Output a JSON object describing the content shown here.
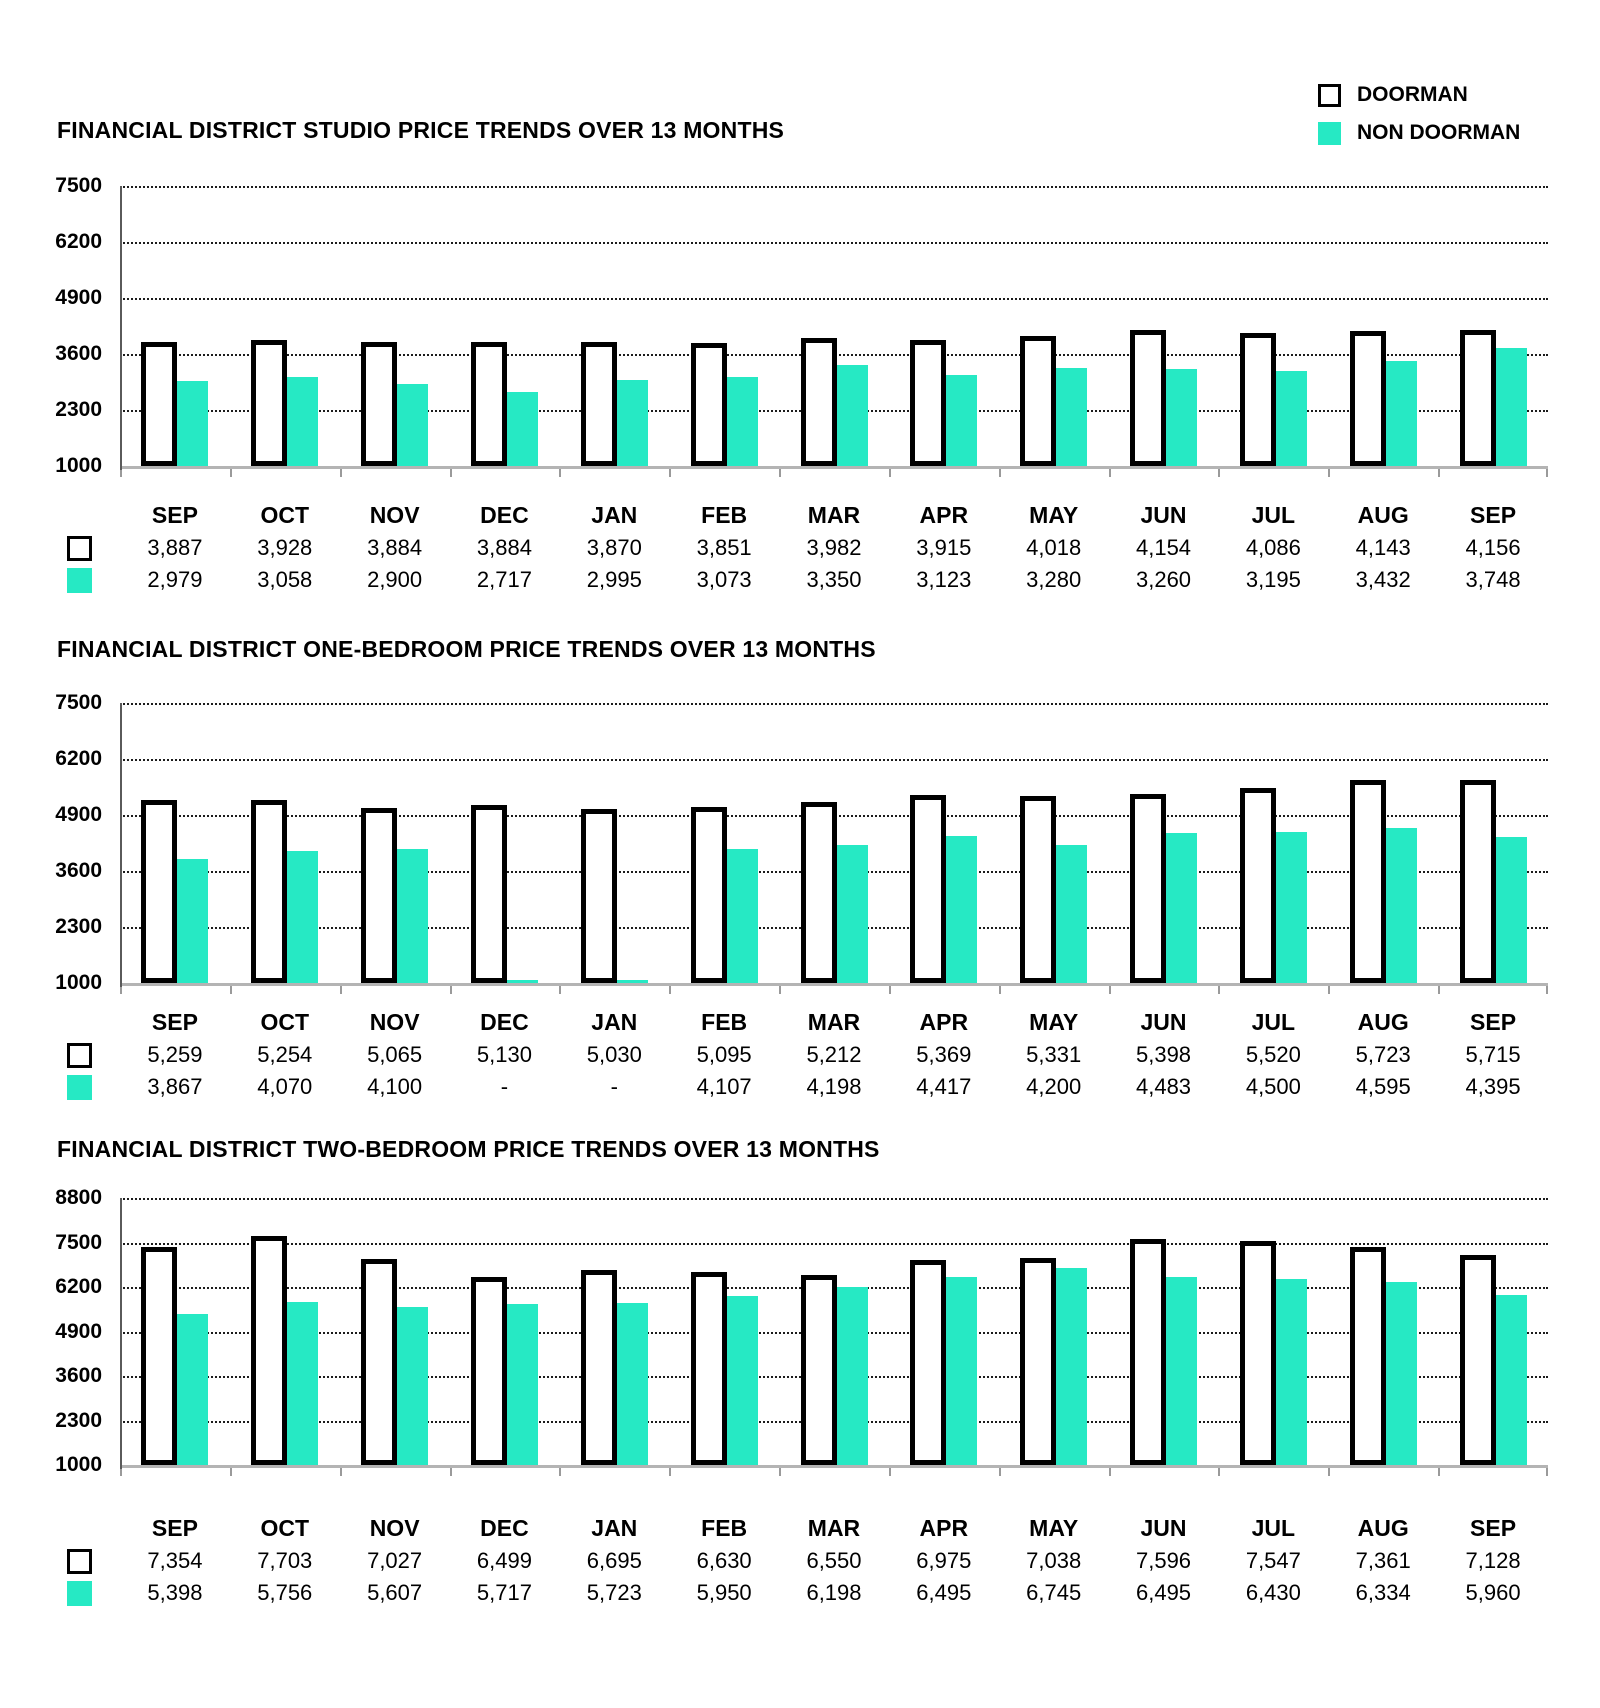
{
  "page": {
    "background": "#ffffff"
  },
  "colors": {
    "doorman_fill": "#ffffff",
    "doorman_border": "#000000",
    "non_doorman_fill": "#26E9C4",
    "gridline": "#1c1c1c",
    "axis_gray": "#b4b4b4"
  },
  "legend": {
    "position": "top-right",
    "items": [
      {
        "label": "DOORMAN",
        "swatch": "outline",
        "color": "#ffffff",
        "border": "#000000"
      },
      {
        "label": "NON DOORMAN",
        "swatch": "fill",
        "color": "#26E9C4"
      }
    ]
  },
  "chart_data": [
    {
      "type": "bar",
      "title": "FINANCIAL DISTRICT STUDIO PRICE TRENDS OVER 13 MONTHS",
      "categories": [
        "SEP",
        "OCT",
        "NOV",
        "DEC",
        "JAN",
        "FEB",
        "MAR",
        "APR",
        "MAY",
        "JUN",
        "JUL",
        "AUG",
        "SEP"
      ],
      "series": [
        {
          "name": "DOORMAN",
          "values": [
            3887,
            3928,
            3884,
            3884,
            3870,
            3851,
            3982,
            3915,
            4018,
            4154,
            4086,
            4143,
            4156
          ]
        },
        {
          "name": "NON DOORMAN",
          "values": [
            2979,
            3058,
            2900,
            2717,
            2995,
            3073,
            3350,
            3123,
            3280,
            3260,
            3195,
            3432,
            3748
          ]
        }
      ],
      "ylim": [
        1000,
        7500
      ],
      "yticks": [
        7500,
        6200,
        4900,
        3600,
        2300,
        1000
      ],
      "grid": true,
      "null_display": "-"
    },
    {
      "type": "bar",
      "title": "FINANCIAL DISTRICT ONE-BEDROOM PRICE TRENDS OVER 13 MONTHS",
      "categories": [
        "SEP",
        "OCT",
        "NOV",
        "DEC",
        "JAN",
        "FEB",
        "MAR",
        "APR",
        "MAY",
        "JUN",
        "JUL",
        "AUG",
        "SEP"
      ],
      "series": [
        {
          "name": "DOORMAN",
          "values": [
            5259,
            5254,
            5065,
            5130,
            5030,
            5095,
            5212,
            5369,
            5331,
            5398,
            5520,
            5723,
            5715
          ]
        },
        {
          "name": "NON DOORMAN",
          "values": [
            3867,
            4070,
            4100,
            null,
            null,
            4107,
            4198,
            4417,
            4200,
            4483,
            4500,
            4595,
            4395
          ]
        }
      ],
      "ylim": [
        1000,
        7500
      ],
      "yticks": [
        7500,
        6200,
        4900,
        3600,
        2300,
        1000
      ],
      "grid": true,
      "null_display": "-"
    },
    {
      "type": "bar",
      "title": "FINANCIAL DISTRICT TWO-BEDROOM PRICE TRENDS OVER 13 MONTHS",
      "categories": [
        "SEP",
        "OCT",
        "NOV",
        "DEC",
        "JAN",
        "FEB",
        "MAR",
        "APR",
        "MAY",
        "JUN",
        "JUL",
        "AUG",
        "SEP"
      ],
      "series": [
        {
          "name": "DOORMAN",
          "values": [
            7354,
            7703,
            7027,
            6499,
            6695,
            6630,
            6550,
            6975,
            7038,
            7596,
            7547,
            7361,
            7128
          ]
        },
        {
          "name": "NON DOORMAN",
          "values": [
            5398,
            5756,
            5607,
            5717,
            5723,
            5950,
            6198,
            6495,
            6745,
            6495,
            6430,
            6334,
            5960
          ]
        }
      ],
      "ylim": [
        1000,
        8800
      ],
      "yticks": [
        8800,
        7500,
        6200,
        4900,
        3600,
        2300,
        1000
      ],
      "grid": true,
      "null_display": "-"
    }
  ]
}
